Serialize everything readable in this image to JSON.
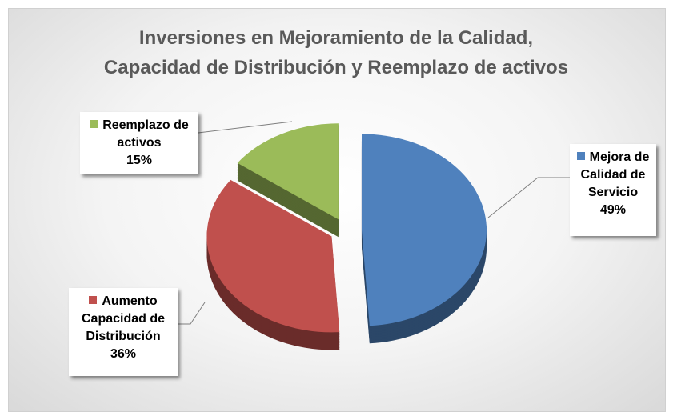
{
  "chart_data": {
    "type": "pie",
    "title": [
      "Inversiones en Mejoramiento de la Calidad,",
      "Capacidad de Distribución y Reemplazo de activos"
    ],
    "categories": [
      "Mejora de Calidad de Servicio",
      "Aumento Capacidad de Distribución",
      "Reemplazo de activos"
    ],
    "values": [
      49,
      36,
      15
    ],
    "value_labels": [
      "49%",
      "36%",
      "15%"
    ],
    "colors": [
      "#4f81bd",
      "#c0504d",
      "#9bbb59"
    ]
  }
}
